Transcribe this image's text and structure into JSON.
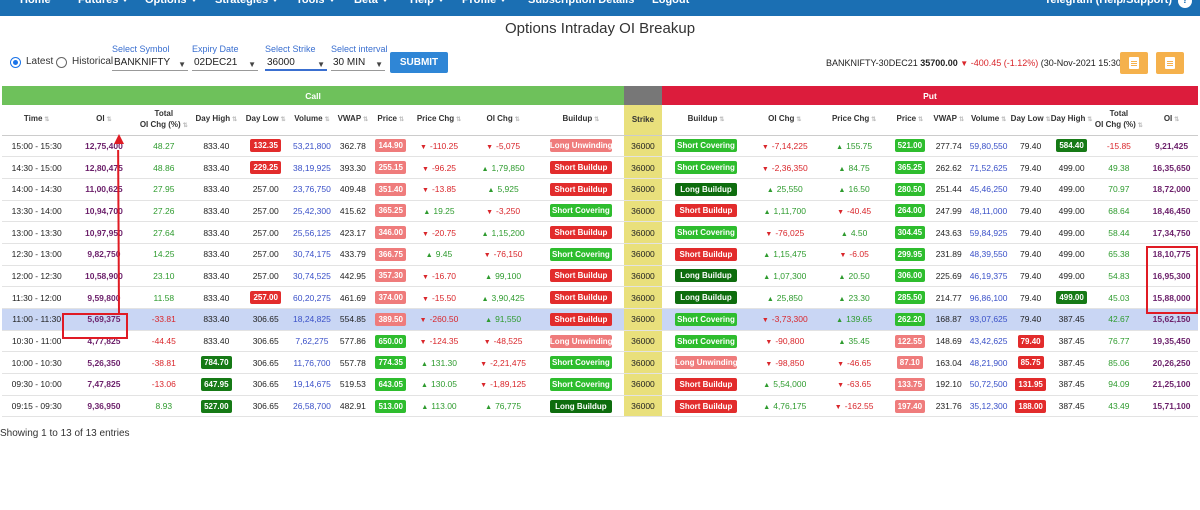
{
  "nav": {
    "items": [
      "Home",
      "Futures",
      "Options",
      "Strategies",
      "Tools",
      "Beta",
      "Help",
      "Profile",
      "Subscription Details",
      "Logout"
    ],
    "right": "Telegram (Help/Support)",
    "right_icon": "?"
  },
  "title": "Options Intraday OI Breakup",
  "controls": {
    "latest_label": "Latest",
    "historical_label": "Historical",
    "symbol_label": "Select Symbol",
    "symbol_value": "BANKNIFTY",
    "expiry_label": "Expiry Date",
    "expiry_value": "02DEC21",
    "strike_label": "Select Strike",
    "strike_value": "36000",
    "interval_label": "Select interval",
    "interval_value": "30 MIN",
    "submit_label": "SUBMIT"
  },
  "instrument": {
    "name": "BANKNIFTY-30DEC21",
    "price": "35700.00",
    "change": "-400.45 (-1.12%)",
    "timestamp": "(30-Nov-2021 15:30 )"
  },
  "bands": {
    "call": "Call",
    "put": "Put"
  },
  "headers": {
    "time": "Time",
    "oi": "OI",
    "total_oi_1": "Total",
    "total_oi_2": "OI Chg (%)",
    "day_high": "Day High",
    "day_low": "Day Low",
    "volume": "Volume",
    "vwap": "VWAP",
    "price": "Price",
    "price_chg": "Price Chg",
    "oi_chg": "OI Chg",
    "buildup": "Buildup",
    "strike": "Strike"
  },
  "rows": [
    {
      "time": "15:00 - 15:30",
      "c_oi": "12,75,400",
      "c_tot": "48.27",
      "c_high": "833.40",
      "c_low": "132.35",
      "c_low_style": "red",
      "c_vol": "53,21,800",
      "c_vwap": "362.78",
      "c_price": "144.90",
      "c_price_style": "pink",
      "c_pchg": "-110.25",
      "c_pchg_dir": "dn",
      "c_oichg": "-5,075",
      "c_oichg_dir": "dn",
      "c_build": "Long Unwinding",
      "c_build_style": "long-unwinding",
      "strike": "36000",
      "p_build": "Short Covering",
      "p_build_style": "short-covering",
      "p_oichg": "-7,14,225",
      "p_oichg_dir": "dn",
      "p_pchg": "155.75",
      "p_pchg_dir": "up",
      "p_price": "521.00",
      "p_price_style": "lgreen",
      "p_vwap": "277.74",
      "p_vol": "59,80,550",
      "p_low": "79.40",
      "p_low_style": "",
      "p_high": "584.40",
      "p_high_style": "dgreen",
      "p_tot": "-15.85",
      "p_oi": "9,21,425"
    },
    {
      "time": "14:30 - 15:00",
      "c_oi": "12,80,475",
      "c_tot": "48.86",
      "c_high": "833.40",
      "c_low": "229.25",
      "c_low_style": "red",
      "c_vol": "38,19,925",
      "c_vwap": "393.30",
      "c_price": "255.15",
      "c_price_style": "pink",
      "c_pchg": "-96.25",
      "c_pchg_dir": "dn",
      "c_oichg": "1,79,850",
      "c_oichg_dir": "up",
      "c_build": "Short Buildup",
      "c_build_style": "short-buildup",
      "strike": "36000",
      "p_build": "Short Covering",
      "p_build_style": "short-covering",
      "p_oichg": "-2,36,350",
      "p_oichg_dir": "dn",
      "p_pchg": "84.75",
      "p_pchg_dir": "up",
      "p_price": "365.25",
      "p_price_style": "lgreen",
      "p_vwap": "262.62",
      "p_vol": "71,52,625",
      "p_low": "79.40",
      "p_low_style": "",
      "p_high": "499.00",
      "p_high_style": "",
      "p_tot": "49.38",
      "p_oi": "16,35,650"
    },
    {
      "time": "14:00 - 14:30",
      "c_oi": "11,00,625",
      "c_tot": "27.95",
      "c_high": "833.40",
      "c_low": "257.00",
      "c_low_style": "",
      "c_vol": "23,76,750",
      "c_vwap": "409.48",
      "c_price": "351.40",
      "c_price_style": "pink",
      "c_pchg": "-13.85",
      "c_pchg_dir": "dn",
      "c_oichg": "5,925",
      "c_oichg_dir": "up",
      "c_build": "Short Buildup",
      "c_build_style": "short-buildup",
      "strike": "36000",
      "p_build": "Long Buildup",
      "p_build_style": "long-buildup",
      "p_oichg": "25,550",
      "p_oichg_dir": "up",
      "p_pchg": "16.50",
      "p_pchg_dir": "up",
      "p_price": "280.50",
      "p_price_style": "lgreen",
      "p_vwap": "251.44",
      "p_vol": "45,46,250",
      "p_low": "79.40",
      "p_low_style": "",
      "p_high": "499.00",
      "p_high_style": "",
      "p_tot": "70.97",
      "p_oi": "18,72,000"
    },
    {
      "time": "13:30 - 14:00",
      "c_oi": "10,94,700",
      "c_tot": "27.26",
      "c_high": "833.40",
      "c_low": "257.00",
      "c_low_style": "",
      "c_vol": "25,42,300",
      "c_vwap": "415.62",
      "c_price": "365.25",
      "c_price_style": "pink",
      "c_pchg": "19.25",
      "c_pchg_dir": "up",
      "c_oichg": "-3,250",
      "c_oichg_dir": "dn",
      "c_build": "Short Covering",
      "c_build_style": "short-covering",
      "strike": "36000",
      "p_build": "Short Buildup",
      "p_build_style": "short-buildup",
      "p_oichg": "1,11,700",
      "p_oichg_dir": "up",
      "p_pchg": "-40.45",
      "p_pchg_dir": "dn",
      "p_price": "264.00",
      "p_price_style": "lgreen",
      "p_vwap": "247.99",
      "p_vol": "48,11,000",
      "p_low": "79.40",
      "p_low_style": "",
      "p_high": "499.00",
      "p_high_style": "",
      "p_tot": "68.64",
      "p_oi": "18,46,450"
    },
    {
      "time": "13:00 - 13:30",
      "c_oi": "10,97,950",
      "c_tot": "27.64",
      "c_high": "833.40",
      "c_low": "257.00",
      "c_low_style": "",
      "c_vol": "25,56,125",
      "c_vwap": "423.17",
      "c_price": "346.00",
      "c_price_style": "pink",
      "c_pchg": "-20.75",
      "c_pchg_dir": "dn",
      "c_oichg": "1,15,200",
      "c_oichg_dir": "up",
      "c_build": "Short Buildup",
      "c_build_style": "short-buildup",
      "strike": "36000",
      "p_build": "Short Covering",
      "p_build_style": "short-covering",
      "p_oichg": "-76,025",
      "p_oichg_dir": "dn",
      "p_pchg": "4.50",
      "p_pchg_dir": "up",
      "p_price": "304.45",
      "p_price_style": "lgreen",
      "p_vwap": "243.63",
      "p_vol": "59,84,925",
      "p_low": "79.40",
      "p_low_style": "",
      "p_high": "499.00",
      "p_high_style": "",
      "p_tot": "58.44",
      "p_oi": "17,34,750"
    },
    {
      "time": "12:30 - 13:00",
      "c_oi": "9,82,750",
      "c_tot": "14.25",
      "c_high": "833.40",
      "c_low": "257.00",
      "c_low_style": "",
      "c_vol": "30,74,175",
      "c_vwap": "433.79",
      "c_price": "366.75",
      "c_price_style": "pink",
      "c_pchg": "9.45",
      "c_pchg_dir": "up",
      "c_oichg": "-76,150",
      "c_oichg_dir": "dn",
      "c_build": "Short Covering",
      "c_build_style": "short-covering",
      "strike": "36000",
      "p_build": "Short Buildup",
      "p_build_style": "short-buildup",
      "p_oichg": "1,15,475",
      "p_oichg_dir": "up",
      "p_pchg": "-6.05",
      "p_pchg_dir": "dn",
      "p_price": "299.95",
      "p_price_style": "lgreen",
      "p_vwap": "231.89",
      "p_vol": "48,39,550",
      "p_low": "79.40",
      "p_low_style": "",
      "p_high": "499.00",
      "p_high_style": "",
      "p_tot": "65.38",
      "p_oi": "18,10,775"
    },
    {
      "time": "12:00 - 12:30",
      "c_oi": "10,58,900",
      "c_tot": "23.10",
      "c_high": "833.40",
      "c_low": "257.00",
      "c_low_style": "",
      "c_vol": "30,74,525",
      "c_vwap": "442.95",
      "c_price": "357.30",
      "c_price_style": "pink",
      "c_pchg": "-16.70",
      "c_pchg_dir": "dn",
      "c_oichg": "99,100",
      "c_oichg_dir": "up",
      "c_build": "Short Buildup",
      "c_build_style": "short-buildup",
      "strike": "36000",
      "p_build": "Long Buildup",
      "p_build_style": "long-buildup",
      "p_oichg": "1,07,300",
      "p_oichg_dir": "up",
      "p_pchg": "20.50",
      "p_pchg_dir": "up",
      "p_price": "306.00",
      "p_price_style": "lgreen",
      "p_vwap": "225.69",
      "p_vol": "46,19,375",
      "p_low": "79.40",
      "p_low_style": "",
      "p_high": "499.00",
      "p_high_style": "",
      "p_tot": "54.83",
      "p_oi": "16,95,300"
    },
    {
      "time": "11:30 - 12:00",
      "c_oi": "9,59,800",
      "c_tot": "11.58",
      "c_high": "833.40",
      "c_low": "257.00",
      "c_low_style": "red",
      "c_vol": "60,20,275",
      "c_vwap": "461.69",
      "c_price": "374.00",
      "c_price_style": "pink",
      "c_pchg": "-15.50",
      "c_pchg_dir": "dn",
      "c_oichg": "3,90,425",
      "c_oichg_dir": "up",
      "c_build": "Short Buildup",
      "c_build_style": "short-buildup",
      "strike": "36000",
      "p_build": "Long Buildup",
      "p_build_style": "long-buildup",
      "p_oichg": "25,850",
      "p_oichg_dir": "up",
      "p_pchg": "23.30",
      "p_pchg_dir": "up",
      "p_price": "285.50",
      "p_price_style": "lgreen",
      "p_vwap": "214.77",
      "p_vol": "96,86,100",
      "p_low": "79.40",
      "p_low_style": "",
      "p_high": "499.00",
      "p_high_style": "dgreen",
      "p_tot": "45.03",
      "p_oi": "15,88,000"
    },
    {
      "time": "11:00 - 11:30",
      "c_oi": "5,69,375",
      "c_tot": "-33.81",
      "c_high": "833.40",
      "c_low": "306.65",
      "c_low_style": "",
      "c_vol": "18,24,825",
      "c_vwap": "554.85",
      "c_price": "389.50",
      "c_price_style": "pink",
      "c_pchg": "-260.50",
      "c_pchg_dir": "dn",
      "c_oichg": "91,550",
      "c_oichg_dir": "up",
      "c_build": "Short Buildup",
      "c_build_style": "short-buildup",
      "strike": "36000",
      "p_build": "Short Covering",
      "p_build_style": "short-covering",
      "p_oichg": "-3,73,300",
      "p_oichg_dir": "dn",
      "p_pchg": "139.65",
      "p_pchg_dir": "up",
      "p_price": "262.20",
      "p_price_style": "lgreen",
      "p_vwap": "168.87",
      "p_vol": "93,07,625",
      "p_low": "79.40",
      "p_low_style": "",
      "p_high": "387.45",
      "p_high_style": "",
      "p_tot": "42.67",
      "p_oi": "15,62,150"
    },
    {
      "time": "10:30 - 11:00",
      "c_oi": "4,77,825",
      "c_tot": "-44.45",
      "c_high": "833.40",
      "c_low": "306.65",
      "c_low_style": "",
      "c_vol": "7,62,275",
      "c_vwap": "577.86",
      "c_price": "650.00",
      "c_price_style": "lgreen",
      "c_pchg": "-124.35",
      "c_pchg_dir": "dn",
      "c_oichg": "-48,525",
      "c_oichg_dir": "dn",
      "c_build": "Long Unwinding",
      "c_build_style": "long-unwinding",
      "strike": "36000",
      "p_build": "Short Covering",
      "p_build_style": "short-covering",
      "p_oichg": "-90,800",
      "p_oichg_dir": "dn",
      "p_pchg": "35.45",
      "p_pchg_dir": "up",
      "p_price": "122.55",
      "p_price_style": "pink",
      "p_vwap": "148.69",
      "p_vol": "43,42,625",
      "p_low": "79.40",
      "p_low_style": "red",
      "p_high": "387.45",
      "p_high_style": "",
      "p_tot": "76.77",
      "p_oi": "19,35,450"
    },
    {
      "time": "10:00 - 10:30",
      "c_oi": "5,26,350",
      "c_tot": "-38.81",
      "c_high": "784.70",
      "c_high_style": "dgreen",
      "c_low": "306.65",
      "c_low_style": "",
      "c_vol": "11,76,700",
      "c_vwap": "557.78",
      "c_price": "774.35",
      "c_price_style": "lgreen",
      "c_pchg": "131.30",
      "c_pchg_dir": "up",
      "c_oichg": "-2,21,475",
      "c_oichg_dir": "dn",
      "c_build": "Short Covering",
      "c_build_style": "short-covering",
      "strike": "36000",
      "p_build": "Long Unwinding",
      "p_build_style": "long-unwinding",
      "p_oichg": "-98,850",
      "p_oichg_dir": "dn",
      "p_pchg": "-46.65",
      "p_pchg_dir": "dn",
      "p_price": "87.10",
      "p_price_style": "pink",
      "p_vwap": "163.04",
      "p_vol": "48,21,900",
      "p_low": "85.75",
      "p_low_style": "red",
      "p_high": "387.45",
      "p_high_style": "",
      "p_tot": "85.06",
      "p_oi": "20,26,250"
    },
    {
      "time": "09:30 - 10:00",
      "c_oi": "7,47,825",
      "c_tot": "-13.06",
      "c_high": "647.95",
      "c_high_style": "dgreen",
      "c_low": "306.65",
      "c_low_style": "",
      "c_vol": "19,14,675",
      "c_vwap": "519.53",
      "c_price": "643.05",
      "c_price_style": "lgreen",
      "c_pchg": "130.05",
      "c_pchg_dir": "up",
      "c_oichg": "-1,89,125",
      "c_oichg_dir": "dn",
      "c_build": "Short Covering",
      "c_build_style": "short-covering",
      "strike": "36000",
      "p_build": "Short Buildup",
      "p_build_style": "short-buildup",
      "p_oichg": "5,54,000",
      "p_oichg_dir": "up",
      "p_pchg": "-63.65",
      "p_pchg_dir": "dn",
      "p_price": "133.75",
      "p_price_style": "pink",
      "p_vwap": "192.10",
      "p_vol": "50,72,500",
      "p_low": "131.95",
      "p_low_style": "red",
      "p_high": "387.45",
      "p_high_style": "",
      "p_tot": "94.09",
      "p_oi": "21,25,100"
    },
    {
      "time": "09:15 - 09:30",
      "c_oi": "9,36,950",
      "c_tot": "8.93",
      "c_high": "527.00",
      "c_high_style": "dgreen",
      "c_low": "306.65",
      "c_low_style": "",
      "c_vol": "26,58,700",
      "c_vwap": "482.91",
      "c_price": "513.00",
      "c_price_style": "lgreen",
      "c_pchg": "113.00",
      "c_pchg_dir": "up",
      "c_oichg": "76,775",
      "c_oichg_dir": "up",
      "c_build": "Long Buildup",
      "c_build_style": "long-buildup",
      "strike": "36000",
      "p_build": "Short Buildup",
      "p_build_style": "short-buildup",
      "p_oichg": "4,76,175",
      "p_oichg_dir": "up",
      "p_pchg": "-162.55",
      "p_pchg_dir": "dn",
      "p_price": "197.40",
      "p_price_style": "pink",
      "p_vwap": "231.76",
      "p_vol": "35,12,300",
      "p_low": "188.00",
      "p_low_style": "red",
      "p_high": "387.45",
      "p_high_style": "",
      "p_tot": "43.49",
      "p_oi": "15,71,100"
    }
  ],
  "footer": "Showing 1 to 13 of 13 entries",
  "colors": {
    "nav": "#1b6fb3",
    "call_band": "#6ec15b",
    "put_band": "#dc1c3c",
    "strike_col": "#e9e07c",
    "highlight_row": "#c9d6f4",
    "annotation": "#e01b24"
  }
}
